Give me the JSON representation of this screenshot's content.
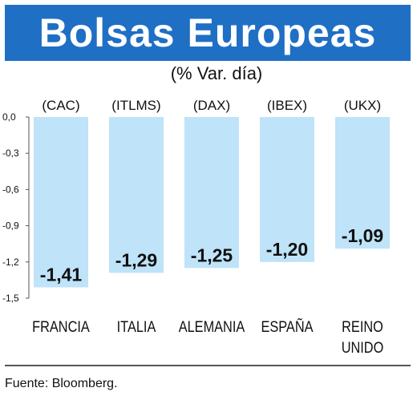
{
  "header": {
    "title": "Bolsas Europeas",
    "subtitle": "(% Var. día)"
  },
  "footer": {
    "source": "Fuente: Bloomberg."
  },
  "colors": {
    "banner": "#1f6fc4",
    "bar": "#bfe3f8",
    "text": "#111111"
  },
  "chart_data": {
    "type": "bar",
    "title": "Bolsas Europeas",
    "subtitle": "(% Var. día)",
    "categories": [
      [
        "FRANCIA"
      ],
      [
        "ITALIA"
      ],
      [
        "ALEMANIA"
      ],
      [
        "ESPAÑA"
      ],
      [
        "REINO",
        "UNIDO"
      ]
    ],
    "indices": [
      "(CAC)",
      "(ITLMS)",
      "(DAX)",
      "(IBEX)",
      "(UKX)"
    ],
    "values": [
      -1.41,
      -1.29,
      -1.25,
      -1.2,
      -1.09
    ],
    "value_labels": [
      "-1,41",
      "-1,29",
      "-1,25",
      "-1,20",
      "-1,09"
    ],
    "yticks": [
      "0,0",
      "-0,3",
      "-0,6",
      "-0,9",
      "-1,2",
      "-1,5"
    ],
    "ytick_values": [
      0,
      -0.3,
      -0.6,
      -0.9,
      -1.2,
      -1.5
    ],
    "ylim": [
      -1.5,
      0
    ],
    "xlabel": "",
    "ylabel": "",
    "grid": false
  }
}
